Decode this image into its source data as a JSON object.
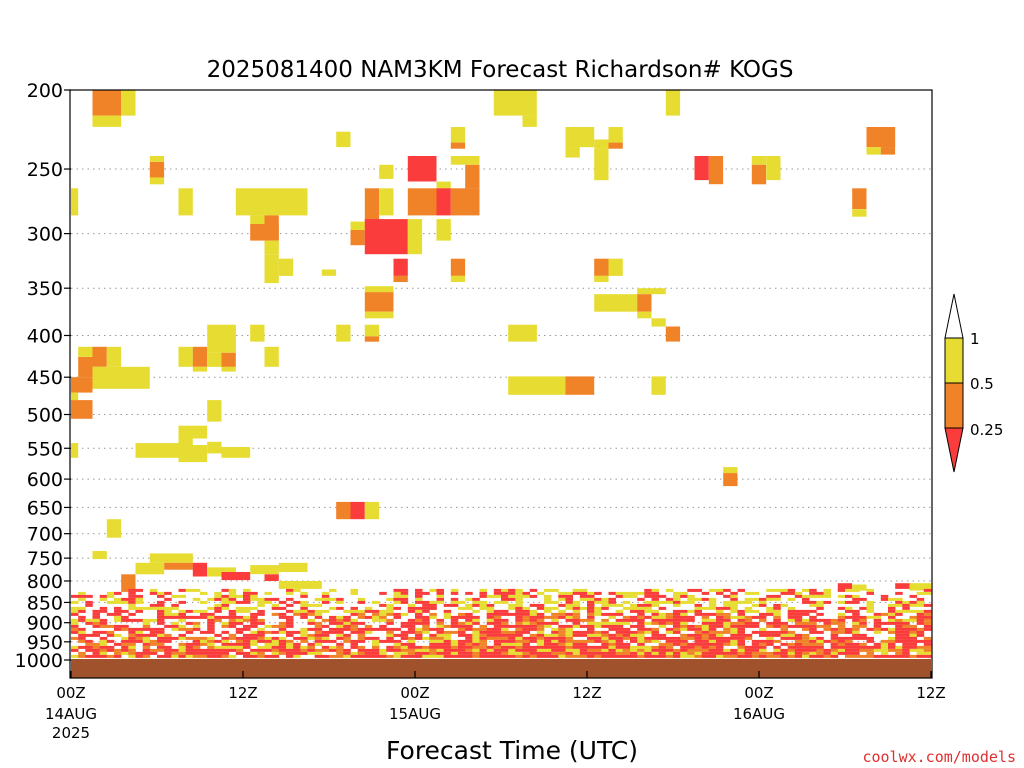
{
  "chart_data": {
    "type": "heatmap",
    "title": "2025081400 NAM3KM Forecast Richardson# KOGS",
    "xlabel": "Forecast Time (UTC)",
    "ylabel": "",
    "x_unit": "hours since 2025-08-14 00Z",
    "xlim": [
      0,
      60
    ],
    "ylim": [
      1000,
      200
    ],
    "y_scale": "log-pressure",
    "grid": "horizontal dotted at each pressure tick",
    "x_ticks": [
      {
        "hour": 0,
        "label": "00Z",
        "sub1": "14AUG",
        "sub2": "2025"
      },
      {
        "hour": 12,
        "label": "12Z",
        "sub1": "",
        "sub2": ""
      },
      {
        "hour": 24,
        "label": "00Z",
        "sub1": "15AUG",
        "sub2": ""
      },
      {
        "hour": 36,
        "label": "12Z",
        "sub1": "",
        "sub2": ""
      },
      {
        "hour": 48,
        "label": "00Z",
        "sub1": "16AUG",
        "sub2": ""
      },
      {
        "hour": 60,
        "label": "12Z",
        "sub1": "",
        "sub2": ""
      }
    ],
    "y_ticks": [
      200,
      250,
      300,
      350,
      400,
      450,
      500,
      550,
      600,
      650,
      700,
      750,
      800,
      850,
      900,
      950,
      1000
    ],
    "colorbar": {
      "labels": [
        "1",
        "0.5",
        "0.25"
      ],
      "colors": {
        "yellow": "#e6dc32",
        "orange": "#f08228",
        "red": "#fa3c3c",
        "white": "#ffffff"
      },
      "classes": [
        "<0.25",
        "0.25-0.5",
        "0.5-1",
        ">1"
      ]
    },
    "ground_color": "#a0522d",
    "cells": [
      {
        "t0": 1.5,
        "t1": 3.5,
        "p0": 200,
        "p1": 215,
        "c": "orange"
      },
      {
        "t0": 1.5,
        "t1": 3.5,
        "p0": 215,
        "p1": 222,
        "c": "yellow"
      },
      {
        "t0": 3.5,
        "t1": 4.5,
        "p0": 200,
        "p1": 215,
        "c": "yellow"
      },
      {
        "t0": 29.5,
        "t1": 32.5,
        "p0": 200,
        "p1": 215,
        "c": "yellow"
      },
      {
        "t0": 31.5,
        "t1": 32.5,
        "p0": 215,
        "p1": 222,
        "c": "yellow"
      },
      {
        "t0": 41.5,
        "t1": 42.5,
        "p0": 200,
        "p1": 215,
        "c": "yellow"
      },
      {
        "t0": 18.5,
        "t1": 19.5,
        "p0": 225,
        "p1": 235,
        "c": "yellow"
      },
      {
        "t0": 26.5,
        "t1": 27.5,
        "p0": 222,
        "p1": 232,
        "c": "yellow"
      },
      {
        "t0": 26.5,
        "t1": 27.5,
        "p0": 232,
        "p1": 236,
        "c": "orange"
      },
      {
        "t0": 34.5,
        "t1": 36.5,
        "p0": 222,
        "p1": 235,
        "c": "yellow"
      },
      {
        "t0": 34.5,
        "t1": 35.5,
        "p0": 235,
        "p1": 242,
        "c": "yellow"
      },
      {
        "t0": 36.5,
        "t1": 37.5,
        "p0": 230,
        "p1": 236,
        "c": "yellow"
      },
      {
        "t0": 37.5,
        "t1": 38.5,
        "p0": 222,
        "p1": 232,
        "c": "yellow"
      },
      {
        "t0": 37.5,
        "t1": 38.5,
        "p0": 232,
        "p1": 236,
        "c": "orange"
      },
      {
        "t0": 36.5,
        "t1": 37.5,
        "p0": 236,
        "p1": 258,
        "c": "yellow"
      },
      {
        "t0": 55.5,
        "t1": 57.5,
        "p0": 222,
        "p1": 235,
        "c": "orange"
      },
      {
        "t0": 55.5,
        "t1": 56.5,
        "p0": 235,
        "p1": 240,
        "c": "yellow"
      },
      {
        "t0": 56.5,
        "t1": 57.5,
        "p0": 235,
        "p1": 240,
        "c": "orange"
      },
      {
        "t0": 5.5,
        "t1": 6.5,
        "p0": 241,
        "p1": 245,
        "c": "yellow"
      },
      {
        "t0": 5.5,
        "t1": 6.5,
        "p0": 245,
        "p1": 256,
        "c": "orange"
      },
      {
        "t0": 5.5,
        "t1": 6.5,
        "p0": 256,
        "p1": 261,
        "c": "yellow"
      },
      {
        "t0": 21.5,
        "t1": 22.5,
        "p0": 247,
        "p1": 257,
        "c": "yellow"
      },
      {
        "t0": 23.5,
        "t1": 25.5,
        "p0": 241,
        "p1": 259,
        "c": "red"
      },
      {
        "t0": 25.5,
        "t1": 26.5,
        "p0": 259,
        "p1": 264,
        "c": "yellow"
      },
      {
        "t0": 26.5,
        "t1": 28.5,
        "p0": 241,
        "p1": 247,
        "c": "yellow"
      },
      {
        "t0": 27.5,
        "t1": 28.5,
        "p0": 247,
        "p1": 264,
        "c": "orange"
      },
      {
        "t0": 43.5,
        "t1": 44.5,
        "p0": 241,
        "p1": 258,
        "c": "red"
      },
      {
        "t0": 44.5,
        "t1": 45.5,
        "p0": 241,
        "p1": 261,
        "c": "orange"
      },
      {
        "t0": 47.5,
        "t1": 48.5,
        "p0": 241,
        "p1": 247,
        "c": "yellow"
      },
      {
        "t0": 47.5,
        "t1": 48.5,
        "p0": 247,
        "p1": 261,
        "c": "orange"
      },
      {
        "t0": 48.5,
        "t1": 49.5,
        "p0": 241,
        "p1": 258,
        "c": "yellow"
      },
      {
        "t0": 0,
        "t1": 0.5,
        "p0": 264,
        "p1": 285,
        "c": "yellow"
      },
      {
        "t0": 7.5,
        "t1": 8.5,
        "p0": 264,
        "p1": 285,
        "c": "yellow"
      },
      {
        "t0": 11.5,
        "t1": 16.5,
        "p0": 264,
        "p1": 285,
        "c": "yellow"
      },
      {
        "t0": 20.5,
        "t1": 21.5,
        "p0": 264,
        "p1": 296,
        "c": "orange"
      },
      {
        "t0": 21.5,
        "t1": 22.5,
        "p0": 264,
        "p1": 285,
        "c": "yellow"
      },
      {
        "t0": 23.5,
        "t1": 25.5,
        "p0": 264,
        "p1": 285,
        "c": "orange"
      },
      {
        "t0": 25.5,
        "t1": 26.5,
        "p0": 264,
        "p1": 285,
        "c": "red"
      },
      {
        "t0": 26.5,
        "t1": 28.5,
        "p0": 264,
        "p1": 285,
        "c": "orange"
      },
      {
        "t0": 54.5,
        "t1": 55.5,
        "p0": 264,
        "p1": 280,
        "c": "orange"
      },
      {
        "t0": 54.5,
        "t1": 55.5,
        "p0": 280,
        "p1": 286,
        "c": "yellow"
      },
      {
        "t0": 12.5,
        "t1": 13.5,
        "p0": 285,
        "p1": 292,
        "c": "yellow"
      },
      {
        "t0": 13.5,
        "t1": 14.5,
        "p0": 285,
        "p1": 292,
        "c": "orange"
      },
      {
        "t0": 12.5,
        "t1": 14.5,
        "p0": 292,
        "p1": 306,
        "c": "orange"
      },
      {
        "t0": 13.5,
        "t1": 14.5,
        "p0": 306,
        "p1": 318,
        "c": "yellow"
      },
      {
        "t0": 19.5,
        "t1": 20.5,
        "p0": 290,
        "p1": 297,
        "c": "yellow"
      },
      {
        "t0": 19.5,
        "t1": 20.5,
        "p0": 297,
        "p1": 310,
        "c": "orange"
      },
      {
        "t0": 20.5,
        "t1": 23.5,
        "p0": 288,
        "p1": 318,
        "c": "red"
      },
      {
        "t0": 23.5,
        "t1": 24.5,
        "p0": 288,
        "p1": 318,
        "c": "yellow"
      },
      {
        "t0": 25.5,
        "t1": 26.5,
        "p0": 288,
        "p1": 306,
        "c": "yellow"
      },
      {
        "t0": 13.5,
        "t1": 14.5,
        "p0": 318,
        "p1": 345,
        "c": "yellow"
      },
      {
        "t0": 14.5,
        "t1": 15.5,
        "p0": 322,
        "p1": 338,
        "c": "yellow"
      },
      {
        "t0": 17.5,
        "t1": 18.5,
        "p0": 332,
        "p1": 338,
        "c": "yellow"
      },
      {
        "t0": 22.5,
        "t1": 23.5,
        "p0": 322,
        "p1": 338,
        "c": "red"
      },
      {
        "t0": 22.5,
        "t1": 23.5,
        "p0": 338,
        "p1": 344,
        "c": "orange"
      },
      {
        "t0": 26.5,
        "t1": 27.5,
        "p0": 322,
        "p1": 338,
        "c": "orange"
      },
      {
        "t0": 26.5,
        "t1": 27.5,
        "p0": 338,
        "p1": 344,
        "c": "yellow"
      },
      {
        "t0": 36.5,
        "t1": 37.5,
        "p0": 322,
        "p1": 338,
        "c": "orange"
      },
      {
        "t0": 37.5,
        "t1": 38.5,
        "p0": 322,
        "p1": 338,
        "c": "yellow"
      },
      {
        "t0": 36.5,
        "t1": 37.5,
        "p0": 338,
        "p1": 344,
        "c": "yellow"
      },
      {
        "t0": 20.5,
        "t1": 22.5,
        "p0": 348,
        "p1": 354,
        "c": "yellow"
      },
      {
        "t0": 20.5,
        "t1": 22.5,
        "p0": 354,
        "p1": 374,
        "c": "orange"
      },
      {
        "t0": 20.5,
        "t1": 22.5,
        "p0": 374,
        "p1": 381,
        "c": "yellow"
      },
      {
        "t0": 36.5,
        "t1": 39.5,
        "p0": 356,
        "p1": 374,
        "c": "yellow"
      },
      {
        "t0": 39.5,
        "t1": 40.5,
        "p0": 350,
        "p1": 356,
        "c": "yellow"
      },
      {
        "t0": 39.5,
        "t1": 40.5,
        "p0": 356,
        "p1": 374,
        "c": "orange"
      },
      {
        "t0": 39.5,
        "t1": 40.5,
        "p0": 374,
        "p1": 381,
        "c": "yellow"
      },
      {
        "t0": 40.5,
        "t1": 41.5,
        "p0": 350,
        "p1": 356,
        "c": "yellow"
      },
      {
        "t0": 40.5,
        "t1": 41.5,
        "p0": 381,
        "p1": 390,
        "c": "yellow"
      },
      {
        "t0": 41.5,
        "t1": 42.5,
        "p0": 390,
        "p1": 407,
        "c": "orange"
      },
      {
        "t0": 9.5,
        "t1": 11.5,
        "p0": 388,
        "p1": 420,
        "c": "yellow"
      },
      {
        "t0": 12.5,
        "t1": 13.5,
        "p0": 388,
        "p1": 407,
        "c": "yellow"
      },
      {
        "t0": 18.5,
        "t1": 19.5,
        "p0": 388,
        "p1": 407,
        "c": "yellow"
      },
      {
        "t0": 20.5,
        "t1": 21.5,
        "p0": 388,
        "p1": 401,
        "c": "yellow"
      },
      {
        "t0": 20.5,
        "t1": 21.5,
        "p0": 401,
        "p1": 407,
        "c": "orange"
      },
      {
        "t0": 30.5,
        "t1": 32.5,
        "p0": 388,
        "p1": 407,
        "c": "yellow"
      },
      {
        "t0": 0.5,
        "t1": 1.5,
        "p0": 413,
        "p1": 425,
        "c": "yellow"
      },
      {
        "t0": 0.5,
        "t1": 1.5,
        "p0": 425,
        "p1": 450,
        "c": "orange"
      },
      {
        "t0": 1.5,
        "t1": 2.5,
        "p0": 413,
        "p1": 437,
        "c": "orange"
      },
      {
        "t0": 1.5,
        "t1": 5.5,
        "p0": 437,
        "p1": 465,
        "c": "yellow"
      },
      {
        "t0": 2.5,
        "t1": 3.5,
        "p0": 413,
        "p1": 437,
        "c": "yellow"
      },
      {
        "t0": 0,
        "t1": 1.5,
        "p0": 450,
        "p1": 470,
        "c": "orange"
      },
      {
        "t0": 0,
        "t1": 0.5,
        "p0": 470,
        "p1": 480,
        "c": "yellow"
      },
      {
        "t0": 0,
        "t1": 1.5,
        "p0": 480,
        "p1": 506,
        "c": "orange"
      },
      {
        "t0": 7.5,
        "t1": 8.5,
        "p0": 413,
        "p1": 437,
        "c": "yellow"
      },
      {
        "t0": 8.5,
        "t1": 9.5,
        "p0": 413,
        "p1": 437,
        "c": "orange"
      },
      {
        "t0": 8.5,
        "t1": 9.5,
        "p0": 437,
        "p1": 443,
        "c": "yellow"
      },
      {
        "t0": 9.5,
        "t1": 10.5,
        "p0": 420,
        "p1": 437,
        "c": "yellow"
      },
      {
        "t0": 10.5,
        "t1": 11.5,
        "p0": 420,
        "p1": 437,
        "c": "orange"
      },
      {
        "t0": 10.5,
        "t1": 11.5,
        "p0": 437,
        "p1": 443,
        "c": "yellow"
      },
      {
        "t0": 13.5,
        "t1": 14.5,
        "p0": 413,
        "p1": 437,
        "c": "yellow"
      },
      {
        "t0": 30.5,
        "t1": 34.5,
        "p0": 449,
        "p1": 473,
        "c": "yellow"
      },
      {
        "t0": 34.5,
        "t1": 36.5,
        "p0": 449,
        "p1": 473,
        "c": "orange"
      },
      {
        "t0": 40.5,
        "t1": 41.5,
        "p0": 449,
        "p1": 473,
        "c": "yellow"
      },
      {
        "t0": 9.5,
        "t1": 10.5,
        "p0": 480,
        "p1": 510,
        "c": "yellow"
      },
      {
        "t0": 7.5,
        "t1": 9.5,
        "p0": 516,
        "p1": 535,
        "c": "yellow"
      },
      {
        "t0": 7.5,
        "t1": 8.5,
        "p0": 535,
        "p1": 545,
        "c": "yellow"
      },
      {
        "t0": 4.5,
        "t1": 7.5,
        "p0": 542,
        "p1": 565,
        "c": "yellow"
      },
      {
        "t0": 7.5,
        "t1": 9.5,
        "p0": 545,
        "p1": 572,
        "c": "yellow"
      },
      {
        "t0": 9.5,
        "t1": 10.5,
        "p0": 540,
        "p1": 558,
        "c": "yellow"
      },
      {
        "t0": 10.5,
        "t1": 12.5,
        "p0": 548,
        "p1": 565,
        "c": "yellow"
      },
      {
        "t0": 0,
        "t1": 0.5,
        "p0": 542,
        "p1": 565,
        "c": "yellow"
      },
      {
        "t0": 45.5,
        "t1": 46.5,
        "p0": 580,
        "p1": 590,
        "c": "yellow"
      },
      {
        "t0": 45.5,
        "t1": 46.5,
        "p0": 590,
        "p1": 612,
        "c": "orange"
      },
      {
        "t0": 18.5,
        "t1": 19.5,
        "p0": 640,
        "p1": 672,
        "c": "orange"
      },
      {
        "t0": 19.5,
        "t1": 20.5,
        "p0": 640,
        "p1": 672,
        "c": "red"
      },
      {
        "t0": 20.5,
        "t1": 21.5,
        "p0": 640,
        "p1": 672,
        "c": "yellow"
      },
      {
        "t0": 2.5,
        "t1": 3.5,
        "p0": 672,
        "p1": 708,
        "c": "yellow"
      },
      {
        "t0": 1.5,
        "t1": 2.5,
        "p0": 735,
        "p1": 752,
        "c": "yellow"
      },
      {
        "t0": 5.5,
        "t1": 8.5,
        "p0": 740,
        "p1": 760,
        "c": "yellow"
      },
      {
        "t0": 4.5,
        "t1": 6.5,
        "p0": 760,
        "p1": 785,
        "c": "yellow"
      },
      {
        "t0": 6.5,
        "t1": 8.5,
        "p0": 760,
        "p1": 775,
        "c": "orange"
      },
      {
        "t0": 8.5,
        "t1": 9.5,
        "p0": 760,
        "p1": 790,
        "c": "red"
      },
      {
        "t0": 9.5,
        "t1": 11.5,
        "p0": 770,
        "p1": 790,
        "c": "yellow"
      },
      {
        "t0": 10.5,
        "t1": 12.5,
        "p0": 780,
        "p1": 798,
        "c": "red"
      },
      {
        "t0": 12.5,
        "t1": 14.5,
        "p0": 765,
        "p1": 785,
        "c": "yellow"
      },
      {
        "t0": 13.5,
        "t1": 14.5,
        "p0": 785,
        "p1": 800,
        "c": "red"
      },
      {
        "t0": 14.5,
        "t1": 16.5,
        "p0": 760,
        "p1": 780,
        "c": "yellow"
      },
      {
        "t0": 14.5,
        "t1": 17.5,
        "p0": 800,
        "p1": 818,
        "c": "yellow"
      },
      {
        "t0": 3.5,
        "t1": 4.5,
        "p0": 785,
        "p1": 825,
        "c": "orange"
      },
      {
        "t0": 53.5,
        "t1": 54.5,
        "p0": 805,
        "p1": 822,
        "c": "red"
      },
      {
        "t0": 54.5,
        "t1": 55.5,
        "p0": 808,
        "p1": 822,
        "c": "yellow"
      },
      {
        "t0": 57.5,
        "t1": 58.5,
        "p0": 805,
        "p1": 818,
        "c": "red"
      },
      {
        "t0": 58.5,
        "t1": 60,
        "p0": 805,
        "p1": 822,
        "c": "yellow"
      }
    ],
    "lower_band": {
      "p_top": 818,
      "p_bottom": 992,
      "density_top": 0.35,
      "density_bottom": 0.9
    }
  },
  "watermark": "coolwx.com/models"
}
